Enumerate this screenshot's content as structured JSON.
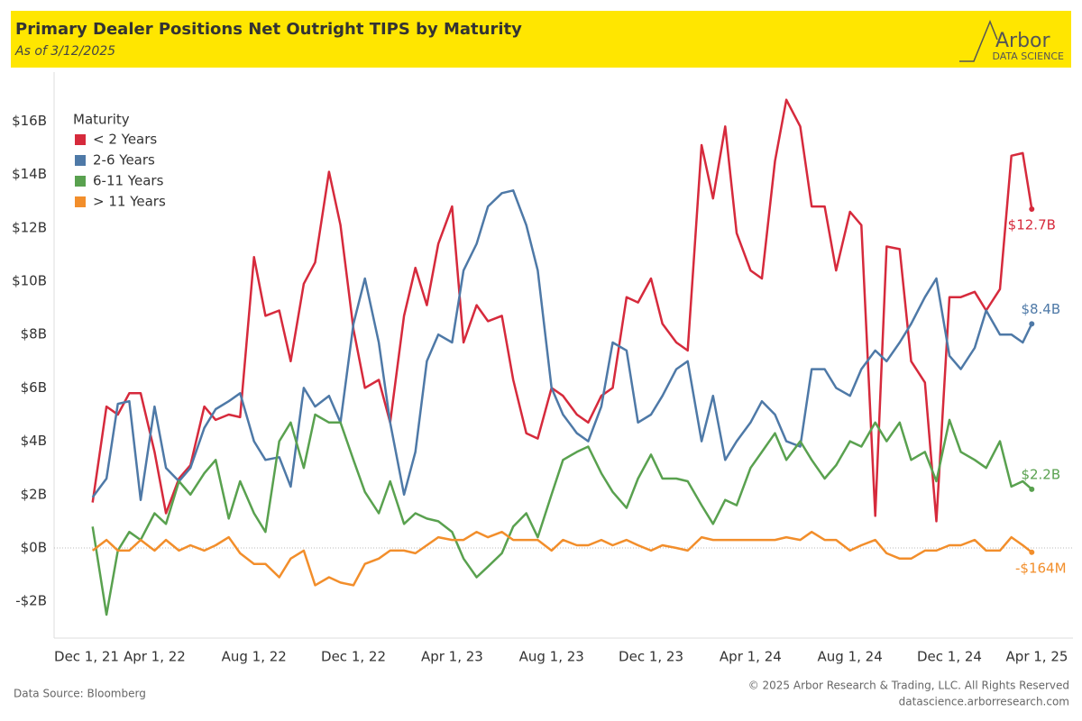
{
  "header": {
    "title": "Primary Dealer Positions Net Outright TIPS by Maturity",
    "subtitle": "As of 3/12/2025"
  },
  "logo": {
    "name": "Arbor",
    "tagline": "DATA SCIENCE"
  },
  "footer": {
    "source": "Data Source: Bloomberg",
    "copyright": "© 2025 Arbor Research & Trading, LLC. All Rights Reserved",
    "website": "datascience.arborresearch.com"
  },
  "chart_data": {
    "type": "line",
    "legend": "top-left",
    "legend_title": "Maturity",
    "zero_line": true,
    "x": [
      "2022-01-15",
      "2022-02-01",
      "2022-02-15",
      "2022-03-01",
      "2022-03-15",
      "2022-04-01",
      "2022-04-15",
      "2022-05-01",
      "2022-05-15",
      "2022-06-01",
      "2022-06-15",
      "2022-07-01",
      "2022-07-15",
      "2022-08-01",
      "2022-08-15",
      "2022-09-01",
      "2022-09-15",
      "2022-10-01",
      "2022-10-15",
      "2022-11-01",
      "2022-11-15",
      "2022-12-01",
      "2022-12-15",
      "2023-01-01",
      "2023-01-15",
      "2023-02-01",
      "2023-02-15",
      "2023-03-01",
      "2023-03-15",
      "2023-04-01",
      "2023-04-15",
      "2023-05-01",
      "2023-05-15",
      "2023-06-01",
      "2023-06-15",
      "2023-07-01",
      "2023-07-15",
      "2023-08-01",
      "2023-08-15",
      "2023-09-01",
      "2023-09-15",
      "2023-10-01",
      "2023-10-15",
      "2023-11-01",
      "2023-11-15",
      "2023-12-01",
      "2023-12-15",
      "2024-01-01",
      "2024-01-15",
      "2024-02-01",
      "2024-02-15",
      "2024-03-01",
      "2024-03-15",
      "2024-04-01",
      "2024-04-15",
      "2024-05-01",
      "2024-05-15",
      "2024-06-01",
      "2024-06-15",
      "2024-07-01",
      "2024-07-15",
      "2024-08-01",
      "2024-08-15",
      "2024-09-01",
      "2024-09-15",
      "2024-10-01",
      "2024-10-15",
      "2024-11-01",
      "2024-11-15",
      "2024-12-01",
      "2024-12-15",
      "2025-01-01",
      "2025-01-15",
      "2025-02-01",
      "2025-02-15",
      "2025-03-01",
      "2025-03-12"
    ],
    "xlim": [
      "2021-12-01",
      "2025-05-01"
    ],
    "xticks": [
      {
        "value": "2021-12-01",
        "label": "Dec 1, 21"
      },
      {
        "value": "2022-04-01",
        "label": "Apr 1, 22"
      },
      {
        "value": "2022-08-01",
        "label": "Aug 1, 22"
      },
      {
        "value": "2022-12-01",
        "label": "Dec 1, 22"
      },
      {
        "value": "2023-04-01",
        "label": "Apr 1, 23"
      },
      {
        "value": "2023-08-01",
        "label": "Aug 1, 23"
      },
      {
        "value": "2023-12-01",
        "label": "Dec 1, 23"
      },
      {
        "value": "2024-04-01",
        "label": "Apr 1, 24"
      },
      {
        "value": "2024-08-01",
        "label": "Aug 1, 24"
      },
      {
        "value": "2024-12-01",
        "label": "Dec 1, 24"
      },
      {
        "value": "2025-04-01",
        "label": "Apr 1, 25"
      }
    ],
    "ylim": [
      -3.38,
      17.33
    ],
    "yticks": [
      {
        "value": -2,
        "label": "-$2B"
      },
      {
        "value": 0,
        "label": "$0B"
      },
      {
        "value": 2,
        "label": "$2B"
      },
      {
        "value": 4,
        "label": "$4B"
      },
      {
        "value": 6,
        "label": "$6B"
      },
      {
        "value": 8,
        "label": "$8B"
      },
      {
        "value": 10,
        "label": "$10B"
      },
      {
        "value": 12,
        "label": "$12B"
      },
      {
        "value": 14,
        "label": "$14B"
      },
      {
        "value": 16,
        "label": "$16B"
      }
    ],
    "series": [
      {
        "name": "< 2 Years",
        "color": "#d62a3c",
        "values": [
          1.7,
          5.3,
          5.0,
          5.8,
          5.8,
          3.6,
          1.3,
          2.6,
          3.1,
          5.3,
          4.8,
          5.0,
          4.9,
          10.9,
          8.7,
          8.9,
          7.0,
          9.9,
          10.7,
          14.1,
          12.1,
          8.2,
          6.0,
          6.3,
          4.7,
          8.7,
          10.5,
          9.1,
          11.4,
          12.8,
          7.7,
          9.1,
          8.5,
          8.7,
          6.3,
          4.3,
          4.1,
          6.0,
          5.7,
          5.0,
          4.7,
          5.7,
          6.0,
          9.4,
          9.2,
          10.1,
          8.4,
          7.7,
          7.4,
          15.1,
          13.1,
          15.8,
          11.8,
          10.4,
          10.1,
          14.5,
          16.8,
          15.8,
          12.8,
          12.8,
          10.4,
          12.6,
          12.1,
          1.2,
          11.3,
          11.2,
          7.0,
          6.2,
          1.0,
          9.4,
          9.4,
          9.6,
          8.9,
          9.7,
          14.7,
          14.8,
          12.7
        ],
        "value_labels": [
          null,
          null,
          null,
          null,
          null,
          null,
          null,
          null,
          null,
          null,
          null,
          null,
          null,
          null,
          null,
          null,
          null,
          null,
          null,
          null,
          null,
          null,
          null,
          null,
          null,
          null,
          null,
          null,
          null,
          null,
          null,
          null,
          null,
          null,
          null,
          null,
          null,
          null,
          null,
          null,
          null,
          null,
          null,
          null,
          null,
          null,
          null,
          null,
          null,
          null,
          null,
          null,
          null,
          null,
          null,
          null,
          null,
          null,
          null,
          null,
          null,
          null,
          null,
          null,
          null,
          null,
          null,
          null,
          null,
          null,
          null,
          null,
          null,
          null,
          null,
          null,
          "$12.7B"
        ]
      },
      {
        "name": "2-6 Years",
        "color": "#4e79a7",
        "values": [
          1.9,
          2.6,
          5.4,
          5.5,
          1.8,
          5.3,
          3.0,
          2.5,
          3.0,
          4.5,
          5.2,
          5.5,
          5.8,
          4.0,
          3.3,
          3.4,
          2.3,
          6.0,
          5.3,
          5.7,
          4.7,
          8.4,
          10.1,
          7.7,
          4.7,
          2.0,
          3.6,
          7.0,
          8.0,
          7.7,
          10.4,
          11.4,
          12.8,
          13.3,
          13.4,
          12.1,
          10.4,
          6.0,
          5.0,
          4.3,
          4.0,
          5.3,
          7.7,
          7.4,
          4.7,
          5.0,
          5.7,
          6.7,
          7.0,
          4.0,
          5.7,
          3.3,
          4.0,
          4.7,
          5.5,
          5.0,
          4.0,
          3.8,
          6.7,
          6.7,
          6.0,
          5.7,
          6.7,
          7.4,
          7.0,
          7.7,
          8.4,
          9.4,
          10.1,
          7.2,
          6.7,
          7.5,
          8.9,
          8.0,
          8.0,
          7.7,
          8.4
        ],
        "value_labels": [
          null,
          null,
          null,
          null,
          null,
          null,
          null,
          null,
          null,
          null,
          null,
          null,
          null,
          null,
          null,
          null,
          null,
          null,
          null,
          null,
          null,
          null,
          null,
          null,
          null,
          null,
          null,
          null,
          null,
          null,
          null,
          null,
          null,
          null,
          null,
          null,
          null,
          null,
          null,
          null,
          null,
          null,
          null,
          null,
          null,
          null,
          null,
          null,
          null,
          null,
          null,
          null,
          null,
          null,
          null,
          null,
          null,
          null,
          null,
          null,
          null,
          null,
          null,
          null,
          null,
          null,
          null,
          null,
          null,
          null,
          null,
          null,
          null,
          null,
          null,
          null,
          "$8.4B"
        ]
      },
      {
        "name": "6-11 Years",
        "color": "#59a14f",
        "values": [
          0.8,
          -2.5,
          -0.1,
          0.6,
          0.3,
          1.3,
          0.9,
          2.5,
          2.0,
          2.8,
          3.3,
          1.1,
          2.5,
          1.3,
          0.6,
          4.0,
          4.7,
          3.0,
          5.0,
          4.7,
          4.7,
          3.3,
          2.1,
          1.3,
          2.5,
          0.9,
          1.3,
          1.1,
          1.0,
          0.6,
          -0.4,
          -1.1,
          -0.7,
          -0.2,
          0.8,
          1.3,
          0.4,
          2.0,
          3.3,
          3.6,
          3.8,
          2.8,
          2.1,
          1.5,
          2.6,
          3.5,
          2.6,
          2.6,
          2.5,
          1.6,
          0.9,
          1.8,
          1.6,
          3.0,
          3.6,
          4.3,
          3.3,
          4.0,
          3.3,
          2.6,
          3.1,
          4.0,
          3.8,
          4.7,
          4.0,
          4.7,
          3.3,
          3.6,
          2.5,
          4.8,
          3.6,
          3.3,
          3.0,
          4.0,
          2.3,
          2.5,
          2.2
        ],
        "value_labels": [
          null,
          null,
          null,
          null,
          null,
          null,
          null,
          null,
          null,
          null,
          null,
          null,
          null,
          null,
          null,
          null,
          null,
          null,
          null,
          null,
          null,
          null,
          null,
          null,
          null,
          null,
          null,
          null,
          null,
          null,
          null,
          null,
          null,
          null,
          null,
          null,
          null,
          null,
          null,
          null,
          null,
          null,
          null,
          null,
          null,
          null,
          null,
          null,
          null,
          null,
          null,
          null,
          null,
          null,
          null,
          null,
          null,
          null,
          null,
          null,
          null,
          null,
          null,
          null,
          null,
          null,
          null,
          null,
          null,
          null,
          null,
          null,
          null,
          null,
          null,
          null,
          "$2.2B"
        ]
      },
      {
        "name": "> 11 Years",
        "color": "#f28e2b",
        "values": [
          -0.1,
          0.3,
          -0.1,
          -0.1,
          0.3,
          -0.1,
          0.3,
          -0.1,
          0.1,
          -0.1,
          0.1,
          0.4,
          -0.2,
          -0.6,
          -0.6,
          -1.1,
          -0.4,
          -0.1,
          -1.4,
          -1.1,
          -1.3,
          -1.4,
          -0.6,
          -0.4,
          -0.1,
          -0.1,
          -0.2,
          0.1,
          0.4,
          0.3,
          0.3,
          0.6,
          0.4,
          0.6,
          0.3,
          0.3,
          0.3,
          -0.1,
          0.3,
          0.1,
          0.1,
          0.3,
          0.1,
          0.3,
          0.1,
          -0.1,
          0.1,
          0.0,
          -0.1,
          0.4,
          0.3,
          0.3,
          0.3,
          0.3,
          0.3,
          0.3,
          0.4,
          0.3,
          0.6,
          0.3,
          0.3,
          -0.1,
          0.1,
          0.3,
          -0.2,
          -0.4,
          -0.4,
          -0.1,
          -0.1,
          0.1,
          0.1,
          0.3,
          -0.1,
          -0.1,
          0.4,
          0.1,
          -0.164
        ],
        "value_labels": [
          null,
          null,
          null,
          null,
          null,
          null,
          null,
          null,
          null,
          null,
          null,
          null,
          null,
          null,
          null,
          null,
          null,
          null,
          null,
          null,
          null,
          null,
          null,
          null,
          null,
          null,
          null,
          null,
          null,
          null,
          null,
          null,
          null,
          null,
          null,
          null,
          null,
          null,
          null,
          null,
          null,
          null,
          null,
          null,
          null,
          null,
          null,
          null,
          null,
          null,
          null,
          null,
          null,
          null,
          null,
          null,
          null,
          null,
          null,
          null,
          null,
          null,
          null,
          null,
          null,
          null,
          null,
          null,
          null,
          null,
          null,
          null,
          null,
          null,
          null,
          null,
          "-$164M"
        ]
      }
    ]
  }
}
